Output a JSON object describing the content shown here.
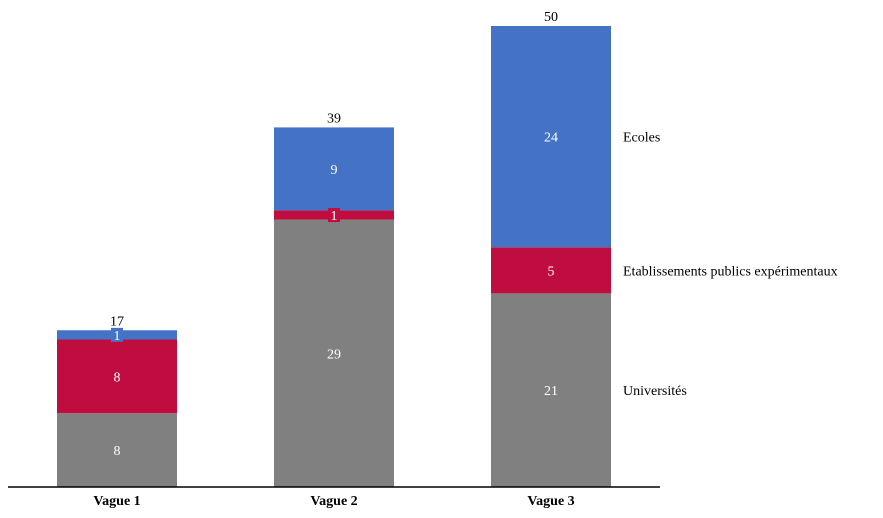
{
  "chart_data": {
    "type": "bar",
    "stacked": true,
    "categories": [
      "Vague 1",
      "Vague 2",
      "Vague 3"
    ],
    "series": [
      {
        "name": "Universités",
        "values": [
          8,
          29,
          21
        ],
        "color": "#808080"
      },
      {
        "name": "Etablissements publics expérimentaux",
        "values": [
          8,
          1,
          5
        ],
        "color": "#C00D3F"
      },
      {
        "name": "Ecoles",
        "values": [
          1,
          9,
          24
        ],
        "color": "#4472C4"
      }
    ],
    "totals": [
      17,
      39,
      50
    ],
    "title": "",
    "xlabel": "",
    "ylabel": "",
    "ylim": [
      0,
      50
    ],
    "grid": false,
    "legend": "right, inline labels"
  }
}
